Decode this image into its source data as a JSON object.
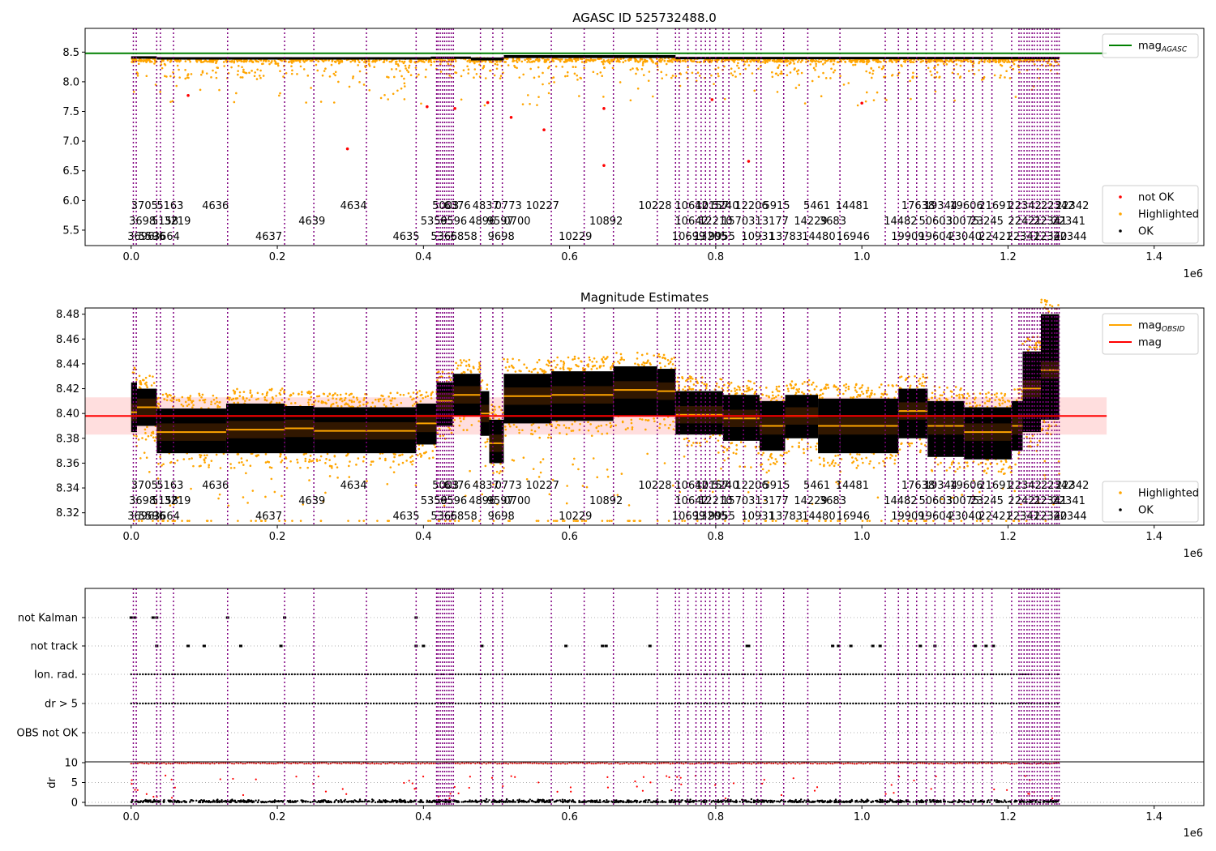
{
  "chart_data": [
    {
      "type": "scatter",
      "title": "AGASC ID 525732488.0",
      "xlabel": "",
      "ylabel": "",
      "x_offset_label": "1e6",
      "xlim": [
        -0.063,
        1.468
      ],
      "ylim": [
        5.24,
        8.9
      ],
      "xticks": [
        0.0,
        0.2,
        0.4,
        0.6,
        0.8,
        1.0,
        1.2,
        1.4
      ],
      "xtick_labels": [
        "0.0",
        "0.2",
        "0.4",
        "0.6",
        "0.8",
        "1.0",
        "1.2",
        "1.4"
      ],
      "yticks": [
        5.5,
        6.0,
        6.5,
        7.0,
        7.5,
        8.0,
        8.5
      ],
      "ytick_labels": [
        "5.5",
        "6.0",
        "6.5",
        "7.0",
        "7.5",
        "8.0",
        "8.5"
      ],
      "hline": {
        "name": "mag_AGASC",
        "y": 8.48,
        "x_range": [
          -0.063,
          1.335
        ],
        "color": "#008000"
      },
      "legend_upper": {
        "placement": "upper right",
        "entries": [
          {
            "label": "mag",
            "sub": "AGASC",
            "kind": "line",
            "color": "#008000"
          }
        ]
      },
      "legend_lower": {
        "placement": "lower right",
        "entries": [
          {
            "label": "not OK",
            "kind": "dot",
            "color": "#ff0000"
          },
          {
            "label": "Highlighted",
            "kind": "dot",
            "color": "#ffa500"
          },
          {
            "label": "OK",
            "kind": "dot",
            "color": "#000000"
          }
        ]
      },
      "series": [
        {
          "name": "OK",
          "color": "#000000",
          "band": {
            "segments": [
              [
                0.0,
                0.035,
                8.4,
                8.43
              ],
              [
                0.035,
                0.41,
                8.385,
                8.415
              ],
              [
                0.41,
                0.465,
                8.39,
                8.425
              ],
              [
                0.465,
                0.51,
                8.36,
                8.41
              ],
              [
                0.51,
                0.745,
                8.4,
                8.45
              ],
              [
                0.745,
                0.97,
                8.38,
                8.42
              ],
              [
                0.97,
                1.27,
                8.38,
                8.42
              ]
            ]
          }
        },
        {
          "name": "not OK",
          "color": "#ff0000",
          "points": [
            [
              0.078,
              7.77
            ],
            [
              0.296,
              6.87
            ],
            [
              0.405,
              7.58
            ],
            [
              0.443,
              7.55
            ],
            [
              0.488,
              7.65
            ],
            [
              0.52,
              7.4
            ],
            [
              0.565,
              7.19
            ],
            [
              0.647,
              7.55
            ],
            [
              0.647,
              6.59
            ],
            [
              0.795,
              7.7
            ],
            [
              0.845,
              6.66
            ],
            [
              1.0,
              7.64
            ]
          ]
        },
        {
          "name": "Highlighted",
          "color": "#ffa500",
          "scatter": {
            "x_range": [
              0.0,
              1.27
            ],
            "y_range": [
              7.5,
              8.45
            ],
            "density": "dense near 8.35, sparse below"
          }
        }
      ],
      "obsid_lines_x": [
        0.003,
        0.007,
        0.035,
        0.04,
        0.058,
        0.132,
        0.21,
        0.25,
        0.322,
        0.39,
        0.418,
        0.42,
        0.423,
        0.426,
        0.429,
        0.432,
        0.435,
        0.438,
        0.441,
        0.478,
        0.495,
        0.508,
        0.575,
        0.62,
        0.66,
        0.72,
        0.745,
        0.75,
        0.762,
        0.773,
        0.78,
        0.786,
        0.792,
        0.8,
        0.81,
        0.818,
        0.838,
        0.856,
        0.862,
        0.893,
        0.926,
        0.97,
        1.032,
        1.05,
        1.063,
        1.075,
        1.088,
        1.1,
        1.113,
        1.126,
        1.14,
        1.152,
        1.165,
        1.178,
        1.205,
        1.215,
        1.218,
        1.222,
        1.226,
        1.229,
        1.233,
        1.236,
        1.24,
        1.244,
        1.248,
        1.252,
        1.255,
        1.26,
        1.264,
        1.267,
        1.27
      ],
      "obsid_labels": [
        {
          "t": "3705",
          "x": 0.0,
          "row": 0
        },
        {
          "t": "5163",
          "x": 0.035,
          "row": 0
        },
        {
          "t": "4636",
          "x": 0.097,
          "row": 0
        },
        {
          "t": "4634",
          "x": 0.286,
          "row": 0
        },
        {
          "t": "5003",
          "x": 0.412,
          "row": 0
        },
        {
          "t": "6376",
          "x": 0.428,
          "row": 0
        },
        {
          "t": "4837",
          "x": 0.467,
          "row": 0
        },
        {
          "t": "0773",
          "x": 0.498,
          "row": 0
        },
        {
          "t": "10227",
          "x": 0.54,
          "row": 0
        },
        {
          "t": "10228",
          "x": 0.694,
          "row": 0
        },
        {
          "t": "10642",
          "x": 0.744,
          "row": 0
        },
        {
          "t": "10157",
          "x": 0.772,
          "row": 0
        },
        {
          "t": "5240",
          "x": 0.795,
          "row": 0
        },
        {
          "t": "12206",
          "x": 0.826,
          "row": 0
        },
        {
          "t": "5915",
          "x": 0.865,
          "row": 0
        },
        {
          "t": "5461",
          "x": 0.92,
          "row": 0
        },
        {
          "t": "14481",
          "x": 0.964,
          "row": 0
        },
        {
          "t": "17638",
          "x": 1.054,
          "row": 0
        },
        {
          "t": "19344",
          "x": 1.085,
          "row": 0
        },
        {
          "t": "19606",
          "x": 1.12,
          "row": 0
        },
        {
          "t": "21691",
          "x": 1.16,
          "row": 0
        },
        {
          "t": "22342",
          "x": 1.2,
          "row": 0
        },
        {
          "t": "22342",
          "x": 1.245,
          "row": 0
        },
        {
          "t": "22342",
          "x": 1.265,
          "row": 0
        },
        {
          "t": "3698",
          "x": -0.003,
          "row": 1
        },
        {
          "t": "5158",
          "x": 0.028,
          "row": 1
        },
        {
          "t": "3219",
          "x": 0.045,
          "row": 1
        },
        {
          "t": "4639",
          "x": 0.229,
          "row": 1
        },
        {
          "t": "5359",
          "x": 0.396,
          "row": 1
        },
        {
          "t": "6596",
          "x": 0.423,
          "row": 1
        },
        {
          "t": "4896",
          "x": 0.462,
          "row": 1
        },
        {
          "t": "9597",
          "x": 0.487,
          "row": 1
        },
        {
          "t": "0700",
          "x": 0.51,
          "row": 1
        },
        {
          "t": "10892",
          "x": 0.627,
          "row": 1
        },
        {
          "t": "10642",
          "x": 0.744,
          "row": 1
        },
        {
          "t": "12210",
          "x": 0.777,
          "row": 1
        },
        {
          "t": "15703",
          "x": 0.808,
          "row": 1
        },
        {
          "t": "13177",
          "x": 0.854,
          "row": 1
        },
        {
          "t": "14229",
          "x": 0.907,
          "row": 1
        },
        {
          "t": "3683",
          "x": 0.942,
          "row": 1
        },
        {
          "t": "14482",
          "x": 1.03,
          "row": 1
        },
        {
          "t": "50603",
          "x": 1.078,
          "row": 1
        },
        {
          "t": "30075",
          "x": 1.115,
          "row": 1
        },
        {
          "t": "23245",
          "x": 1.148,
          "row": 1
        },
        {
          "t": "22421",
          "x": 1.2,
          "row": 1
        },
        {
          "t": "22341",
          "x": 1.235,
          "row": 1
        },
        {
          "t": "22341",
          "x": 1.26,
          "row": 1
        },
        {
          "t": "3696",
          "x": -0.005,
          "row": 2
        },
        {
          "t": "5596",
          "x": 0.01,
          "row": 2
        },
        {
          "t": "3664",
          "x": 0.03,
          "row": 2
        },
        {
          "t": "4637",
          "x": 0.17,
          "row": 2
        },
        {
          "t": "4635",
          "x": 0.358,
          "row": 2
        },
        {
          "t": "5365",
          "x": 0.41,
          "row": 2
        },
        {
          "t": "6858",
          "x": 0.437,
          "row": 2
        },
        {
          "t": "9698",
          "x": 0.488,
          "row": 2
        },
        {
          "t": "10229",
          "x": 0.585,
          "row": 2
        },
        {
          "t": "10699",
          "x": 0.74,
          "row": 2
        },
        {
          "t": "13205",
          "x": 0.77,
          "row": 2
        },
        {
          "t": "9955",
          "x": 0.79,
          "row": 2
        },
        {
          "t": "10931",
          "x": 0.835,
          "row": 2
        },
        {
          "t": "13783",
          "x": 0.873,
          "row": 2
        },
        {
          "t": "14480",
          "x": 0.918,
          "row": 2
        },
        {
          "t": "16946",
          "x": 0.965,
          "row": 2
        },
        {
          "t": "19909",
          "x": 1.04,
          "row": 2
        },
        {
          "t": "19604",
          "x": 1.078,
          "row": 2
        },
        {
          "t": "23040",
          "x": 1.118,
          "row": 2
        },
        {
          "t": "22421",
          "x": 1.16,
          "row": 2
        },
        {
          "t": "22341",
          "x": 1.198,
          "row": 2
        },
        {
          "t": "22340",
          "x": 1.235,
          "row": 2
        },
        {
          "t": "22344",
          "x": 1.262,
          "row": 2
        }
      ]
    },
    {
      "type": "scatter",
      "title": "Magnitude Estimates",
      "xlabel": "",
      "ylabel": "",
      "x_offset_label": "1e6",
      "xlim": [
        -0.063,
        1.468
      ],
      "ylim": [
        8.31,
        8.485
      ],
      "xticks": [
        0.0,
        0.2,
        0.4,
        0.6,
        0.8,
        1.0,
        1.2,
        1.4
      ],
      "xtick_labels": [
        "0.0",
        "0.2",
        "0.4",
        "0.6",
        "0.8",
        "1.0",
        "1.2",
        "1.4"
      ],
      "yticks": [
        8.32,
        8.34,
        8.36,
        8.38,
        8.4,
        8.42,
        8.44,
        8.46,
        8.48
      ],
      "ytick_labels": [
        "8.32",
        "8.34",
        "8.36",
        "8.38",
        "8.40",
        "8.42",
        "8.44",
        "8.46",
        "8.48"
      ],
      "mag_line": {
        "name": "mag",
        "y": 8.398,
        "band": [
          8.383,
          8.413
        ],
        "x_range": [
          -0.063,
          1.335
        ],
        "color": "#ff0000"
      },
      "legend_upper": {
        "placement": "upper right",
        "entries": [
          {
            "label": "mag",
            "sub": "OBSID",
            "kind": "line",
            "color": "#ffa500"
          },
          {
            "label": "mag",
            "sub": "",
            "kind": "line",
            "color": "#ff0000"
          }
        ]
      },
      "legend_lower": {
        "placement": "lower right",
        "entries": [
          {
            "label": "Highlighted",
            "kind": "dot",
            "color": "#ffa500"
          },
          {
            "label": "OK",
            "kind": "dot",
            "color": "#000000"
          }
        ]
      },
      "segments": [
        [
          0.0,
          0.008,
          8.401,
          8.385,
          8.425
        ],
        [
          0.008,
          0.035,
          8.405,
          8.39,
          8.42
        ],
        [
          0.035,
          0.13,
          8.385,
          8.368,
          8.404
        ],
        [
          0.13,
          0.21,
          8.387,
          8.368,
          8.408
        ],
        [
          0.21,
          0.25,
          8.388,
          8.368,
          8.406
        ],
        [
          0.25,
          0.39,
          8.386,
          8.368,
          8.405
        ],
        [
          0.39,
          0.418,
          8.392,
          8.375,
          8.408
        ],
        [
          0.418,
          0.44,
          8.41,
          8.39,
          8.425
        ],
        [
          0.44,
          0.478,
          8.415,
          8.398,
          8.432
        ],
        [
          0.478,
          0.49,
          8.4,
          8.382,
          8.418
        ],
        [
          0.49,
          0.51,
          8.376,
          8.36,
          8.395
        ],
        [
          0.51,
          0.575,
          8.414,
          8.392,
          8.432
        ],
        [
          0.575,
          0.66,
          8.415,
          8.394,
          8.434
        ],
        [
          0.66,
          0.72,
          8.419,
          8.398,
          8.438
        ],
        [
          0.72,
          0.745,
          8.418,
          8.398,
          8.436
        ],
        [
          0.745,
          0.81,
          8.399,
          8.383,
          8.418
        ],
        [
          0.81,
          0.86,
          8.396,
          8.378,
          8.415
        ],
        [
          0.86,
          0.895,
          8.39,
          8.37,
          8.41
        ],
        [
          0.895,
          0.94,
          8.398,
          8.38,
          8.415
        ],
        [
          0.94,
          0.97,
          8.39,
          8.368,
          8.412
        ],
        [
          0.97,
          1.05,
          8.39,
          8.368,
          8.412
        ],
        [
          1.05,
          1.09,
          8.402,
          8.38,
          8.42
        ],
        [
          1.09,
          1.14,
          8.39,
          8.365,
          8.41
        ],
        [
          1.14,
          1.205,
          8.385,
          8.363,
          8.405
        ],
        [
          1.205,
          1.22,
          8.39,
          8.37,
          8.41
        ],
        [
          1.22,
          1.245,
          8.42,
          8.385,
          8.45
        ],
        [
          1.245,
          1.27,
          8.435,
          8.395,
          8.48
        ]
      ],
      "obsid_lines_x": [
        0.003,
        0.007,
        0.035,
        0.04,
        0.058,
        0.132,
        0.21,
        0.25,
        0.322,
        0.39,
        0.418,
        0.42,
        0.423,
        0.426,
        0.429,
        0.432,
        0.435,
        0.438,
        0.441,
        0.478,
        0.495,
        0.508,
        0.575,
        0.62,
        0.66,
        0.72,
        0.745,
        0.75,
        0.762,
        0.773,
        0.78,
        0.786,
        0.792,
        0.8,
        0.81,
        0.818,
        0.838,
        0.856,
        0.862,
        0.893,
        0.926,
        0.97,
        1.032,
        1.05,
        1.063,
        1.075,
        1.088,
        1.1,
        1.113,
        1.126,
        1.14,
        1.152,
        1.165,
        1.178,
        1.205,
        1.215,
        1.218,
        1.222,
        1.226,
        1.229,
        1.233,
        1.236,
        1.24,
        1.244,
        1.248,
        1.252,
        1.255,
        1.26,
        1.264,
        1.267,
        1.27
      ]
    },
    {
      "type": "scatter",
      "title": "",
      "xlabel": "",
      "ylabel": "dr",
      "x_offset_label": "1e6",
      "xlim": [
        -0.063,
        1.468
      ],
      "xticks": [
        0.0,
        0.2,
        0.4,
        0.6,
        0.8,
        1.0,
        1.2,
        1.4
      ],
      "xtick_labels": [
        "0.0",
        "0.2",
        "0.4",
        "0.6",
        "0.8",
        "1.0",
        "1.2",
        "1.4"
      ],
      "flag_rows": [
        "not Kalman",
        "not track",
        "Ion. rad.",
        "dr > 5",
        "OBS not OK"
      ],
      "dr_yticks": [
        0,
        5,
        10
      ],
      "dr_ytick_labels": [
        "0",
        "5",
        "10"
      ],
      "dr_ylim": [
        -0.3,
        10.3
      ],
      "dr_threshold": 10,
      "flag_presence": {
        "not Kalman": [
          0.0,
          0.005,
          0.03,
          0.035,
          0.132,
          0.21,
          0.39
        ],
        "not track": [
          0.035,
          0.078,
          0.1,
          0.15,
          0.205,
          0.39,
          0.4,
          0.48,
          0.595,
          0.645,
          0.65,
          0.71,
          0.843,
          0.845,
          0.96,
          0.968,
          0.985,
          1.015,
          1.025,
          1.08,
          1.1,
          1.155,
          1.17,
          1.18
        ],
        "Ion. rad. range": [
          0.0,
          1.27
        ],
        "dr > 5 range": [
          0.0,
          1.27
        ]
      },
      "obsid_lines_x": [
        0.003,
        0.007,
        0.035,
        0.04,
        0.058,
        0.132,
        0.21,
        0.25,
        0.322,
        0.39,
        0.418,
        0.42,
        0.423,
        0.426,
        0.429,
        0.432,
        0.435,
        0.438,
        0.441,
        0.478,
        0.495,
        0.508,
        0.575,
        0.62,
        0.66,
        0.72,
        0.745,
        0.75,
        0.762,
        0.773,
        0.78,
        0.786,
        0.792,
        0.8,
        0.81,
        0.818,
        0.838,
        0.856,
        0.862,
        0.893,
        0.926,
        0.97,
        1.032,
        1.05,
        1.063,
        1.075,
        1.088,
        1.1,
        1.113,
        1.126,
        1.14,
        1.152,
        1.165,
        1.178,
        1.205,
        1.215,
        1.218,
        1.222,
        1.226,
        1.229,
        1.233,
        1.236,
        1.24,
        1.244,
        1.248,
        1.252,
        1.255,
        1.26,
        1.264,
        1.267,
        1.27
      ]
    }
  ]
}
